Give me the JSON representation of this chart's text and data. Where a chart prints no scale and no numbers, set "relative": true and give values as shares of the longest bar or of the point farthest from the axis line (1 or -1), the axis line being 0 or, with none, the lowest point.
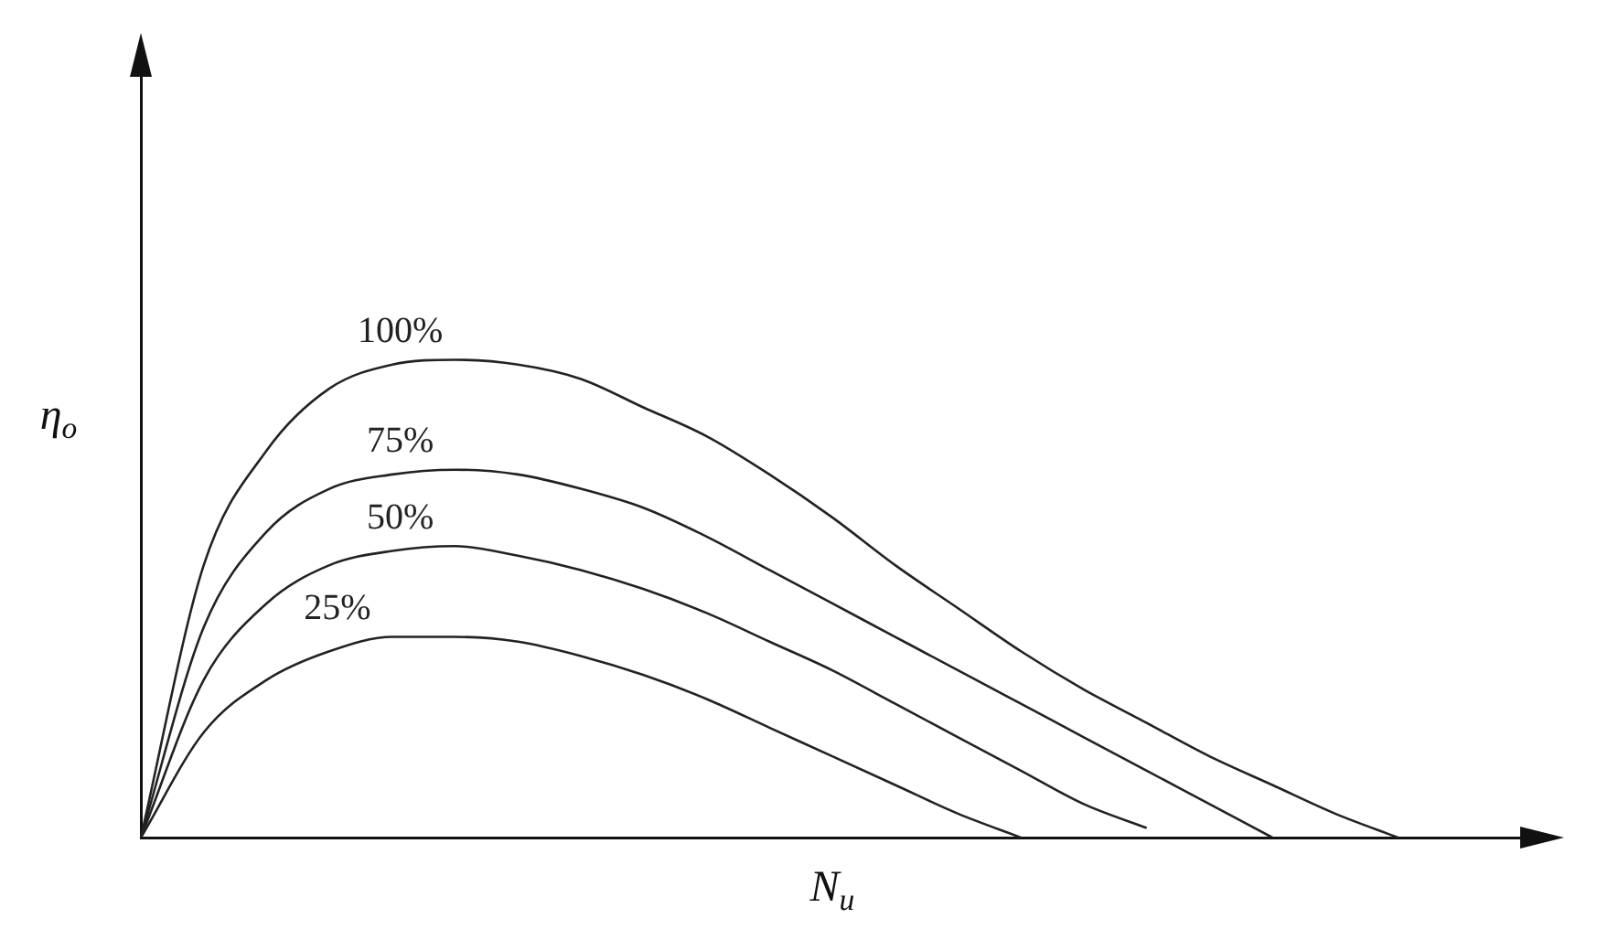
{
  "chart_data": {
    "type": "line",
    "relative": true,
    "xlabel": "N$_{u}$",
    "ylabel": "η$_{o}$",
    "categories": [
      null,
      null,
      null,
      null,
      null,
      null,
      null,
      null,
      null,
      null,
      null,
      null,
      null,
      null,
      null,
      null,
      null,
      null,
      null,
      null,
      null,
      null,
      null
    ],
    "grid": false,
    "legend": false,
    "marker": "none",
    "line_style": "solid",
    "series": [
      {
        "name": "100%",
        "color": "#222222",
        "values": [
          0,
          0.57,
          0.81,
          0.94,
          0.99,
          1,
          0.99,
          0.96,
          0.9,
          0.84,
          0.76,
          0.67,
          0.57,
          0.48,
          0.39,
          0.31,
          0.24,
          0.17,
          0.11,
          0.05,
          0,
          null,
          null
        ]
      },
      {
        "name": "75%",
        "color": "#222222",
        "values": [
          0,
          0.44,
          0.64,
          0.73,
          0.76,
          0.77,
          0.76,
          0.73,
          0.69,
          0.63,
          0.56,
          0.49,
          0.42,
          0.35,
          0.28,
          0.21,
          0.14,
          0.07,
          0,
          null,
          null,
          null,
          null
        ]
      },
      {
        "name": "50%",
        "color": "#222222",
        "values": [
          0,
          0.33,
          0.49,
          0.57,
          0.6,
          0.61,
          0.59,
          0.56,
          0.52,
          0.47,
          0.41,
          0.35,
          0.28,
          0.21,
          0.14,
          0.07,
          0.02,
          null,
          null,
          null,
          null,
          null,
          null
        ]
      },
      {
        "name": "25%",
        "color": "#222222",
        "values": [
          0,
          0.22,
          0.33,
          0.39,
          0.42,
          0.42,
          0.41,
          0.38,
          0.34,
          0.29,
          0.23,
          0.17,
          0.11,
          0.05,
          0,
          null,
          null,
          null,
          null,
          null,
          null,
          null,
          null
        ]
      }
    ]
  }
}
